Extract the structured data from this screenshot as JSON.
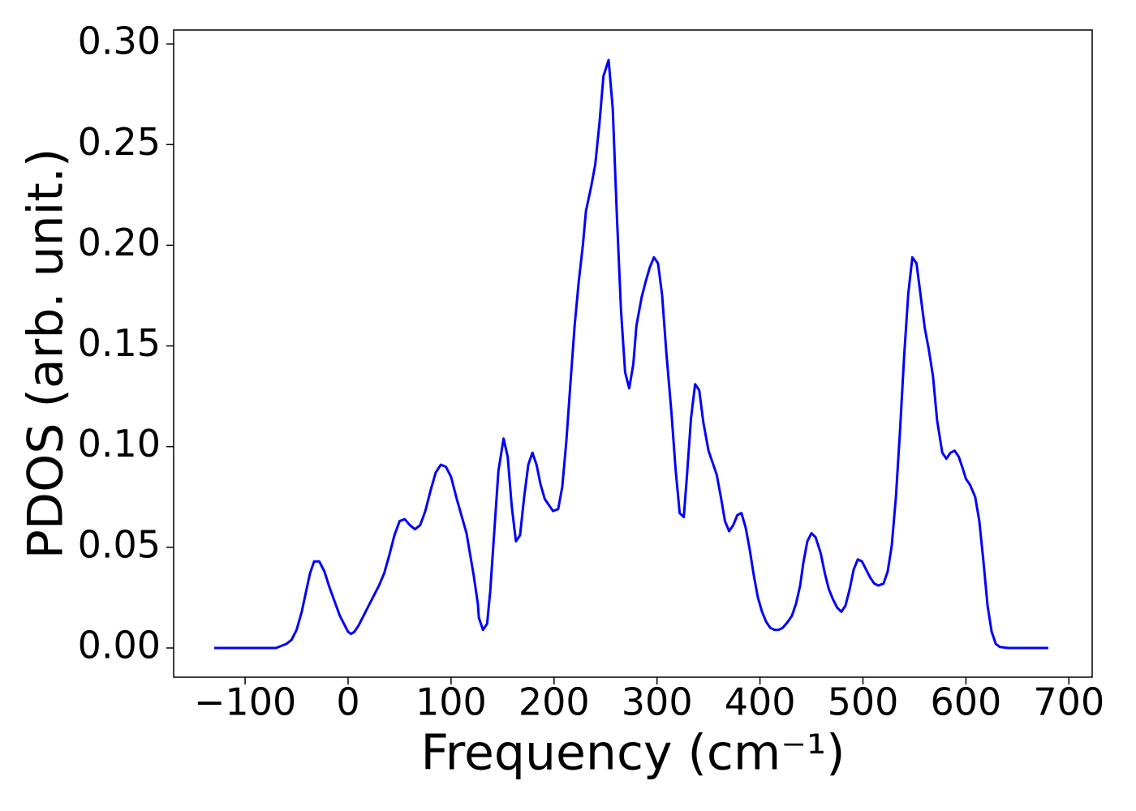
{
  "chart_data": {
    "type": "line",
    "x_label": "Frequency (cm⁻¹)",
    "y_label": "PDOS (arb. unit.)",
    "color": "#0000ff",
    "xlim": [
      -169.4,
      722.6
    ],
    "ylim": [
      -0.0145,
      0.3069
    ],
    "xticks": [
      {
        "value": -100,
        "label": "−100"
      },
      0,
      100,
      200,
      300,
      400,
      500,
      600,
      700
    ],
    "yticks": [
      {
        "value": 0,
        "label": "0.00"
      },
      0.05,
      {
        "value": 0.1,
        "label": "0.10"
      },
      0.15,
      {
        "value": 0.2,
        "label": "0.20"
      },
      0.25,
      {
        "value": 0.3,
        "label": "0.30"
      }
    ],
    "x": [
      -130,
      -70,
      -60,
      -55,
      -50,
      -45,
      -40,
      -37,
      -33,
      -28,
      -23,
      -18,
      -13,
      -8,
      -3,
      0,
      3,
      6,
      10,
      15,
      20,
      25,
      30,
      35,
      40,
      45,
      50,
      55,
      60,
      65,
      70,
      75,
      80,
      85,
      90,
      95,
      100,
      105,
      110,
      115,
      118,
      122,
      126,
      127,
      131,
      135,
      138,
      142,
      146,
      151,
      155,
      159,
      163,
      167,
      171,
      175,
      179,
      183,
      187,
      191,
      195,
      199,
      204,
      208,
      212,
      216,
      220,
      224,
      228,
      231,
      236,
      240,
      244,
      248,
      253,
      257,
      261,
      265,
      269,
      273,
      277,
      280,
      285,
      289,
      293,
      297,
      301,
      305,
      309,
      314,
      318,
      322,
      326,
      329,
      333,
      337,
      341,
      345,
      350,
      354,
      358,
      362,
      366,
      370,
      374,
      378,
      382,
      386,
      390,
      394,
      398,
      402,
      406,
      410,
      414,
      418,
      422,
      427,
      431,
      435,
      439,
      442,
      446,
      450,
      454,
      459,
      463,
      467,
      471,
      475,
      479,
      483,
      487,
      491,
      495,
      499,
      503,
      507,
      511,
      515,
      520,
      524,
      528,
      532,
      536,
      540,
      544,
      548,
      552,
      556,
      560,
      564,
      568,
      572,
      577,
      581,
      585,
      589,
      593,
      597,
      600,
      604,
      609,
      613,
      617,
      621,
      625,
      629,
      633,
      641,
      680
    ],
    "values": [
      0,
      0,
      0.002,
      0.004,
      0.009,
      0.018,
      0.03,
      0.037,
      0.043,
      0.043,
      0.038,
      0.03,
      0.023,
      0.016,
      0.011,
      0.008,
      0.007,
      0.008,
      0.011,
      0.016,
      0.021,
      0.026,
      0.031,
      0.037,
      0.046,
      0.056,
      0.063,
      0.064,
      0.061,
      0.059,
      0.061,
      0.068,
      0.078,
      0.087,
      0.091,
      0.09,
      0.085,
      0.075,
      0.066,
      0.057,
      0.048,
      0.036,
      0.022,
      0.015,
      0.009,
      0.012,
      0.028,
      0.058,
      0.088,
      0.104,
      0.095,
      0.07,
      0.053,
      0.056,
      0.075,
      0.091,
      0.097,
      0.091,
      0.081,
      0.074,
      0.071,
      0.068,
      0.069,
      0.08,
      0.103,
      0.132,
      0.16,
      0.182,
      0.2,
      0.217,
      0.229,
      0.24,
      0.26,
      0.284,
      0.292,
      0.268,
      0.215,
      0.168,
      0.137,
      0.129,
      0.141,
      0.16,
      0.174,
      0.182,
      0.189,
      0.194,
      0.191,
      0.175,
      0.147,
      0.117,
      0.089,
      0.067,
      0.065,
      0.085,
      0.114,
      0.131,
      0.128,
      0.112,
      0.098,
      0.092,
      0.086,
      0.075,
      0.063,
      0.058,
      0.061,
      0.066,
      0.067,
      0.06,
      0.049,
      0.036,
      0.025,
      0.018,
      0.013,
      0.01,
      0.009,
      0.009,
      0.01,
      0.013,
      0.016,
      0.022,
      0.031,
      0.042,
      0.053,
      0.057,
      0.055,
      0.047,
      0.037,
      0.029,
      0.024,
      0.02,
      0.018,
      0.021,
      0.029,
      0.039,
      0.044,
      0.043,
      0.039,
      0.035,
      0.032,
      0.031,
      0.032,
      0.038,
      0.051,
      0.075,
      0.108,
      0.145,
      0.176,
      0.194,
      0.191,
      0.175,
      0.159,
      0.148,
      0.135,
      0.113,
      0.097,
      0.094,
      0.097,
      0.098,
      0.095,
      0.089,
      0.084,
      0.081,
      0.075,
      0.063,
      0.043,
      0.021,
      0.008,
      0.002,
      0.0005,
      0,
      0
    ]
  }
}
